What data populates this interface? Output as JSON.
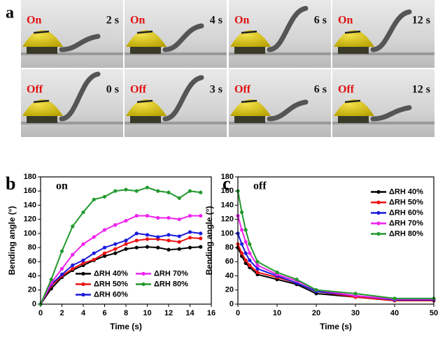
{
  "panel_a": {
    "label": "a",
    "photos": [
      {
        "state": "On",
        "time": "2 s"
      },
      {
        "state": "On",
        "time": "4 s"
      },
      {
        "state": "On",
        "time": "6 s"
      },
      {
        "state": "On",
        "time": "12 s"
      },
      {
        "state": "Off",
        "time": "0 s"
      },
      {
        "state": "Off",
        "time": "3 s"
      },
      {
        "state": "Off",
        "time": "6 s"
      },
      {
        "state": "Off",
        "time": "12 s"
      }
    ]
  },
  "chart_data": [
    {
      "type": "line",
      "panel_label": "b",
      "title": "on",
      "x_label": "Time (s)",
      "y_label": "Bending angle (°)",
      "x": [
        0,
        1,
        2,
        3,
        4,
        5,
        6,
        7,
        8,
        9,
        10,
        11,
        12,
        13,
        14,
        15
      ],
      "xlim": [
        0,
        16
      ],
      "xticks": [
        0,
        2,
        4,
        6,
        8,
        10,
        12,
        14,
        16
      ],
      "ylim": [
        0,
        180
      ],
      "yticks": [
        0,
        20,
        40,
        60,
        80,
        100,
        120,
        140,
        160,
        180
      ],
      "legend": "lower center",
      "legend_columns": 2,
      "series": [
        {
          "name": "ΔRH 40%",
          "color": "#000000",
          "values": [
            0,
            22,
            38,
            48,
            55,
            62,
            68,
            72,
            78,
            80,
            81,
            80,
            77,
            78,
            80,
            81
          ]
        },
        {
          "name": "ΔRH 50%",
          "color": "#ee1111",
          "values": [
            0,
            26,
            40,
            50,
            58,
            63,
            72,
            78,
            85,
            90,
            92,
            92,
            90,
            88,
            94,
            93
          ]
        },
        {
          "name": "ΔRH 60%",
          "color": "#1a1adc",
          "values": [
            0,
            28,
            42,
            55,
            62,
            72,
            80,
            85,
            90,
            100,
            98,
            95,
            98,
            96,
            102,
            100
          ]
        },
        {
          "name": "ΔRH 70%",
          "color": "#ee22ee",
          "values": [
            0,
            30,
            50,
            70,
            85,
            95,
            105,
            112,
            118,
            125,
            125,
            122,
            122,
            120,
            125,
            125
          ]
        },
        {
          "name": "ΔRH 80%",
          "color": "#22992e",
          "values": [
            0,
            35,
            75,
            110,
            130,
            148,
            152,
            160,
            162,
            160,
            165,
            160,
            158,
            150,
            160,
            158
          ]
        }
      ]
    },
    {
      "type": "line",
      "panel_label": "c",
      "title": "off",
      "x_label": "Time (s)",
      "y_label": "Bending angle (°)",
      "x": [
        0,
        1,
        2,
        3,
        5,
        10,
        15,
        20,
        30,
        40,
        50
      ],
      "xlim": [
        0,
        50
      ],
      "xticks": [
        0,
        10,
        20,
        30,
        40,
        50
      ],
      "ylim": [
        0,
        180
      ],
      "yticks": [
        0,
        20,
        40,
        60,
        80,
        100,
        120,
        140,
        160,
        180
      ],
      "legend": "upper right",
      "legend_columns": 1,
      "series": [
        {
          "name": "ΔRH 40%",
          "color": "#000000",
          "values": [
            80,
            68,
            58,
            52,
            42,
            35,
            28,
            15,
            10,
            5,
            5
          ]
        },
        {
          "name": "ΔRH 50%",
          "color": "#ee1111",
          "values": [
            85,
            72,
            62,
            55,
            45,
            38,
            30,
            18,
            10,
            5,
            5
          ]
        },
        {
          "name": "ΔRH 60%",
          "color": "#1a1adc",
          "values": [
            100,
            85,
            72,
            62,
            50,
            40,
            30,
            18,
            12,
            6,
            6
          ]
        },
        {
          "name": "ΔRH 70%",
          "color": "#ee22ee",
          "values": [
            125,
            105,
            88,
            72,
            55,
            42,
            33,
            20,
            12,
            7,
            7
          ]
        },
        {
          "name": "ΔRH 80%",
          "color": "#22992e",
          "values": [
            160,
            130,
            105,
            85,
            60,
            45,
            35,
            20,
            15,
            8,
            8
          ]
        }
      ]
    }
  ]
}
